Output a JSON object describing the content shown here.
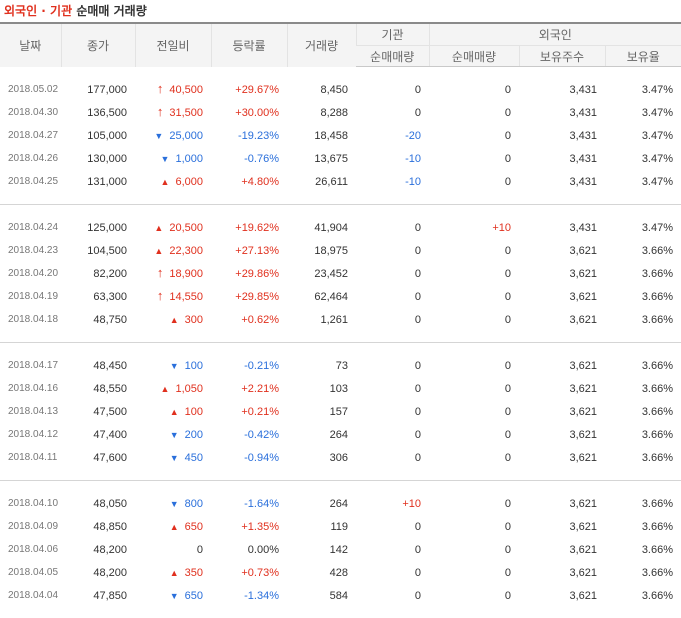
{
  "title": {
    "part1": "외국인 · 기관",
    "part2": "순매매 거래량"
  },
  "headers": {
    "date": "날짜",
    "close": "종가",
    "change": "전일비",
    "rate": "등락률",
    "volume": "거래량",
    "inst_group": "기관",
    "foreign_group": "외국인",
    "inst_net": "순매매량",
    "foreign_net": "순매매량",
    "foreign_hold": "보유주수",
    "foreign_ratio": "보유율"
  },
  "colors": {
    "up": "#e0301e",
    "down": "#2a6fdb"
  },
  "groups": [
    [
      {
        "date": "2018.05.02",
        "close": "177,000",
        "dir": "upper",
        "change": "40,500",
        "rate": "+29.67%",
        "volume": "8,450",
        "inst": "0",
        "foreign": "0",
        "hold": "3,431",
        "ratio": "3.47%"
      },
      {
        "date": "2018.04.30",
        "close": "136,500",
        "dir": "upper",
        "change": "31,500",
        "rate": "+30.00%",
        "volume": "8,288",
        "inst": "0",
        "foreign": "0",
        "hold": "3,431",
        "ratio": "3.47%"
      },
      {
        "date": "2018.04.27",
        "close": "105,000",
        "dir": "down",
        "change": "25,000",
        "rate": "-19.23%",
        "volume": "18,458",
        "inst": "-20",
        "foreign": "0",
        "hold": "3,431",
        "ratio": "3.47%"
      },
      {
        "date": "2018.04.26",
        "close": "130,000",
        "dir": "down",
        "change": "1,000",
        "rate": "-0.76%",
        "volume": "13,675",
        "inst": "-10",
        "foreign": "0",
        "hold": "3,431",
        "ratio": "3.47%"
      },
      {
        "date": "2018.04.25",
        "close": "131,000",
        "dir": "up",
        "change": "6,000",
        "rate": "+4.80%",
        "volume": "26,611",
        "inst": "-10",
        "foreign": "0",
        "hold": "3,431",
        "ratio": "3.47%"
      }
    ],
    [
      {
        "date": "2018.04.24",
        "close": "125,000",
        "dir": "up",
        "change": "20,500",
        "rate": "+19.62%",
        "volume": "41,904",
        "inst": "0",
        "foreign": "+10",
        "hold": "3,431",
        "ratio": "3.47%"
      },
      {
        "date": "2018.04.23",
        "close": "104,500",
        "dir": "up",
        "change": "22,300",
        "rate": "+27.13%",
        "volume": "18,975",
        "inst": "0",
        "foreign": "0",
        "hold": "3,621",
        "ratio": "3.66%"
      },
      {
        "date": "2018.04.20",
        "close": "82,200",
        "dir": "upper",
        "change": "18,900",
        "rate": "+29.86%",
        "volume": "23,452",
        "inst": "0",
        "foreign": "0",
        "hold": "3,621",
        "ratio": "3.66%"
      },
      {
        "date": "2018.04.19",
        "close": "63,300",
        "dir": "upper",
        "change": "14,550",
        "rate": "+29.85%",
        "volume": "62,464",
        "inst": "0",
        "foreign": "0",
        "hold": "3,621",
        "ratio": "3.66%"
      },
      {
        "date": "2018.04.18",
        "close": "48,750",
        "dir": "up",
        "change": "300",
        "rate": "+0.62%",
        "volume": "1,261",
        "inst": "0",
        "foreign": "0",
        "hold": "3,621",
        "ratio": "3.66%"
      }
    ],
    [
      {
        "date": "2018.04.17",
        "close": "48,450",
        "dir": "down",
        "change": "100",
        "rate": "-0.21%",
        "volume": "73",
        "inst": "0",
        "foreign": "0",
        "hold": "3,621",
        "ratio": "3.66%"
      },
      {
        "date": "2018.04.16",
        "close": "48,550",
        "dir": "up",
        "change": "1,050",
        "rate": "+2.21%",
        "volume": "103",
        "inst": "0",
        "foreign": "0",
        "hold": "3,621",
        "ratio": "3.66%"
      },
      {
        "date": "2018.04.13",
        "close": "47,500",
        "dir": "up",
        "change": "100",
        "rate": "+0.21%",
        "volume": "157",
        "inst": "0",
        "foreign": "0",
        "hold": "3,621",
        "ratio": "3.66%"
      },
      {
        "date": "2018.04.12",
        "close": "47,400",
        "dir": "down",
        "change": "200",
        "rate": "-0.42%",
        "volume": "264",
        "inst": "0",
        "foreign": "0",
        "hold": "3,621",
        "ratio": "3.66%"
      },
      {
        "date": "2018.04.11",
        "close": "47,600",
        "dir": "down",
        "change": "450",
        "rate": "-0.94%",
        "volume": "306",
        "inst": "0",
        "foreign": "0",
        "hold": "3,621",
        "ratio": "3.66%"
      }
    ],
    [
      {
        "date": "2018.04.10",
        "close": "48,050",
        "dir": "down",
        "change": "800",
        "rate": "-1.64%",
        "volume": "264",
        "inst": "+10",
        "foreign": "0",
        "hold": "3,621",
        "ratio": "3.66%"
      },
      {
        "date": "2018.04.09",
        "close": "48,850",
        "dir": "up",
        "change": "650",
        "rate": "+1.35%",
        "volume": "119",
        "inst": "0",
        "foreign": "0",
        "hold": "3,621",
        "ratio": "3.66%"
      },
      {
        "date": "2018.04.06",
        "close": "48,200",
        "dir": "none",
        "change": "0",
        "rate": "0.00%",
        "volume": "142",
        "inst": "0",
        "foreign": "0",
        "hold": "3,621",
        "ratio": "3.66%"
      },
      {
        "date": "2018.04.05",
        "close": "48,200",
        "dir": "up",
        "change": "350",
        "rate": "+0.73%",
        "volume": "428",
        "inst": "0",
        "foreign": "0",
        "hold": "3,621",
        "ratio": "3.66%"
      },
      {
        "date": "2018.04.04",
        "close": "47,850",
        "dir": "down",
        "change": "650",
        "rate": "-1.34%",
        "volume": "584",
        "inst": "0",
        "foreign": "0",
        "hold": "3,621",
        "ratio": "3.66%"
      }
    ]
  ]
}
